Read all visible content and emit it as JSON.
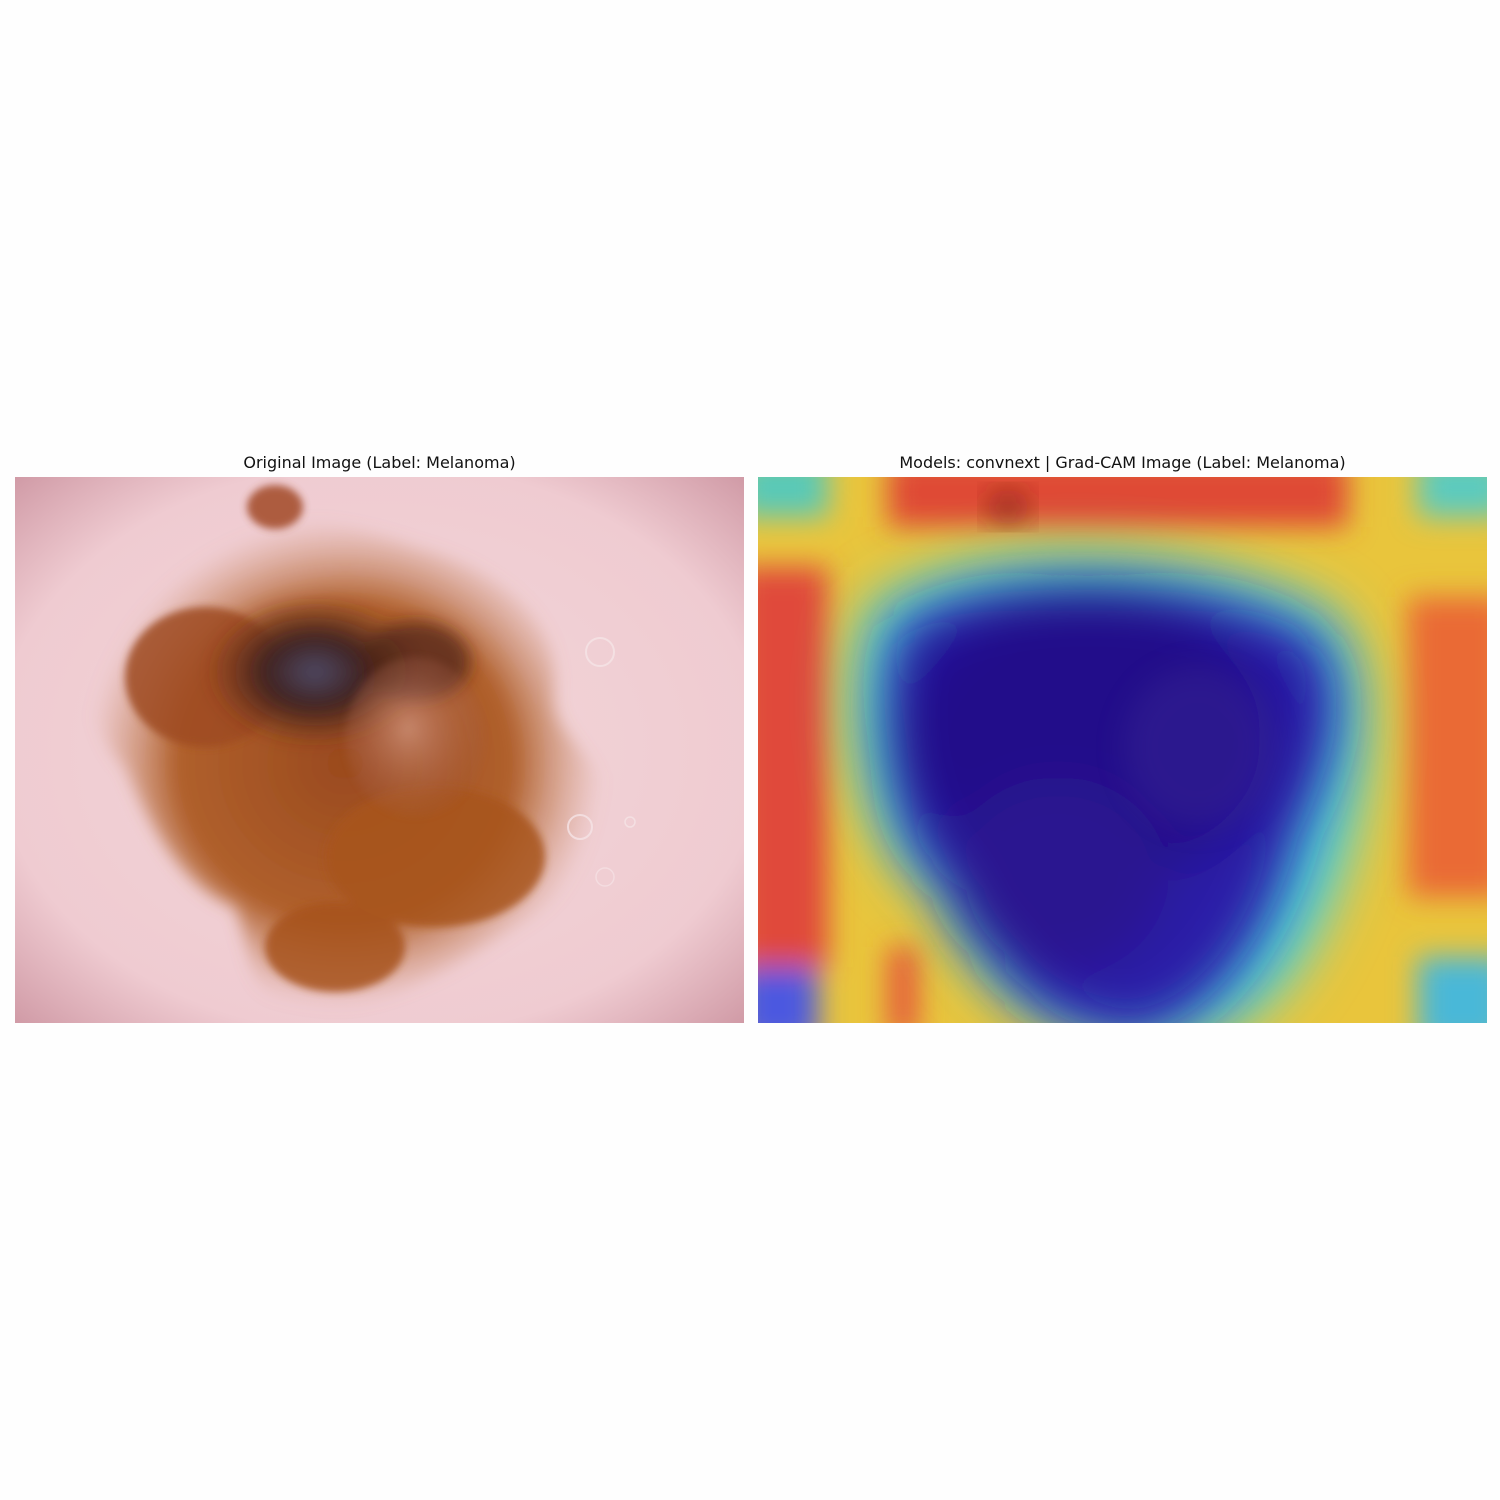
{
  "figure": {
    "left_panel": {
      "title": "Original Image (Label: Melanoma)",
      "image_name": "dermoscopy-lesion-image"
    },
    "right_panel": {
      "title": "Models: convnext | Grad-CAM Image (Label: Melanoma)",
      "image_name": "grad-cam-heatmap-overlay"
    }
  }
}
